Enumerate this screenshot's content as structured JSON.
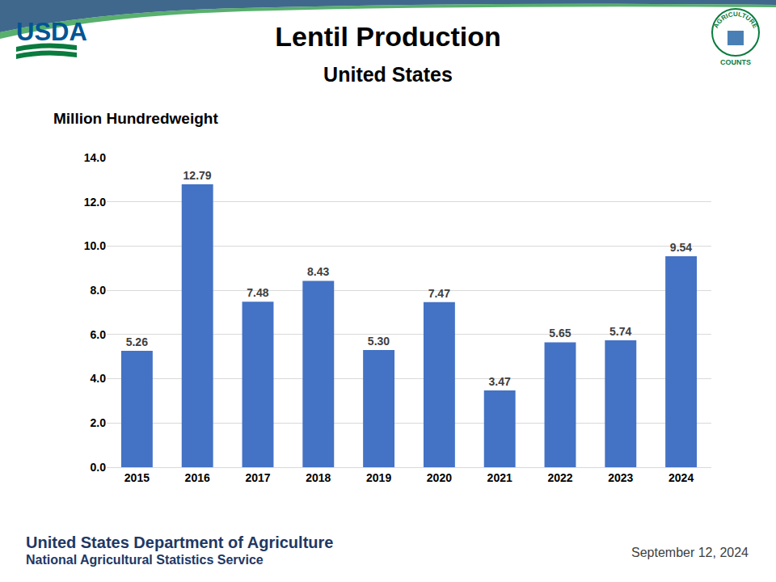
{
  "chart_data": {
    "type": "bar",
    "title": "Lentil Production",
    "subtitle": "United States",
    "y_label": "Million Hundredweight",
    "categories": [
      "2015",
      "2016",
      "2017",
      "2018",
      "2019",
      "2020",
      "2021",
      "2022",
      "2023",
      "2024"
    ],
    "values": [
      5.26,
      12.79,
      7.48,
      8.43,
      5.3,
      7.47,
      3.47,
      5.65,
      5.74,
      9.54
    ],
    "value_labels": [
      "5.26",
      "12.79",
      "7.48",
      "8.43",
      "5.30",
      "7.47",
      "3.47",
      "5.65",
      "5.74",
      "9.54"
    ],
    "color": "#4472c4",
    "ylim": [
      0,
      14
    ],
    "yticks": [
      {
        "value": 0,
        "label": "0.0"
      },
      {
        "value": 2,
        "label": "2.0"
      },
      {
        "value": 4,
        "label": "4.0"
      },
      {
        "value": 6,
        "label": "6.0"
      },
      {
        "value": 8,
        "label": "8.0"
      },
      {
        "value": 10,
        "label": "10.0"
      },
      {
        "value": 12,
        "label": "12.0"
      },
      {
        "value": 14,
        "label": "14.0"
      }
    ],
    "grid": true,
    "data_labels": true
  },
  "header": {
    "logo": "USDA",
    "badge": [
      "AGRICULTURE",
      "COUNTS"
    ]
  },
  "footer": {
    "agency": "United States Department of Agriculture",
    "service": "National Agricultural Statistics Service",
    "date": "September 12, 2024"
  }
}
